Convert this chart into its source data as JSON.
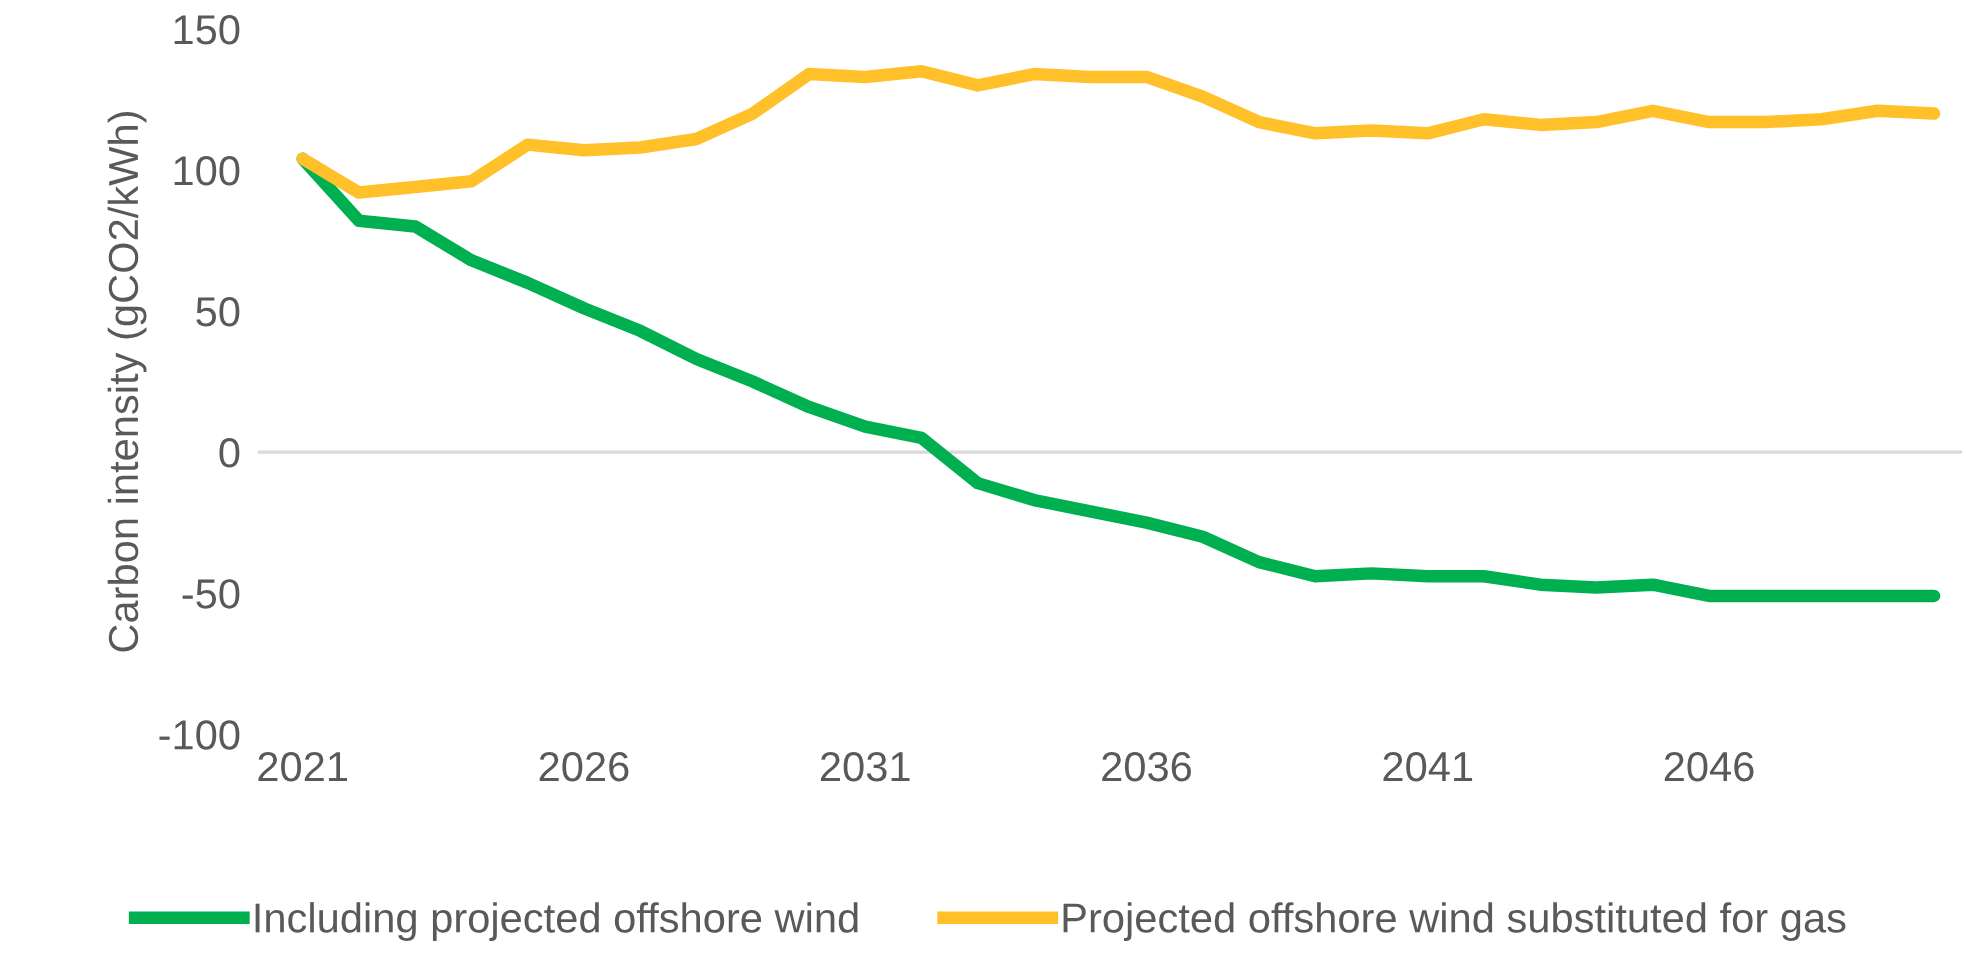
{
  "chart_data": {
    "type": "line",
    "ylabel": "Carbon intensity (gCO2/kWh)",
    "categories": [
      "2021",
      null,
      null,
      null,
      null,
      "2026",
      null,
      null,
      null,
      null,
      "2031",
      null,
      null,
      null,
      null,
      "2036",
      null,
      null,
      null,
      null,
      "2041",
      null,
      null,
      null,
      null,
      "2046",
      null,
      null,
      null,
      null
    ],
    "series": [
      {
        "name": "Including projected offshore wind",
        "color": "#00b050",
        "values": [
          104,
          82,
          80,
          68,
          60,
          51,
          43,
          33,
          25,
          16,
          9,
          5,
          -11,
          -17,
          -21,
          -25,
          -30,
          -39,
          -44,
          -43,
          -44,
          -44,
          -47,
          -48,
          -47,
          -51,
          -51,
          -51,
          -51,
          -51
        ]
      },
      {
        "name": "Projected offshore wind substituted for gas",
        "color": "#ffc02a",
        "values": [
          104,
          92,
          94,
          96,
          109,
          107,
          108,
          111,
          120,
          134,
          133,
          135,
          130,
          134,
          133,
          133,
          126,
          117,
          113,
          114,
          113,
          118,
          116,
          117,
          121,
          117,
          117,
          118,
          121,
          120
        ]
      }
    ],
    "ylim": [
      -100,
      150
    ],
    "yticks": [
      -100,
      -50,
      0,
      50,
      100,
      150
    ],
    "ref_lines": [
      {
        "axis": "y",
        "value": 0,
        "color": "#d9d9d9"
      }
    ],
    "grid": false,
    "legend": "bottom"
  }
}
